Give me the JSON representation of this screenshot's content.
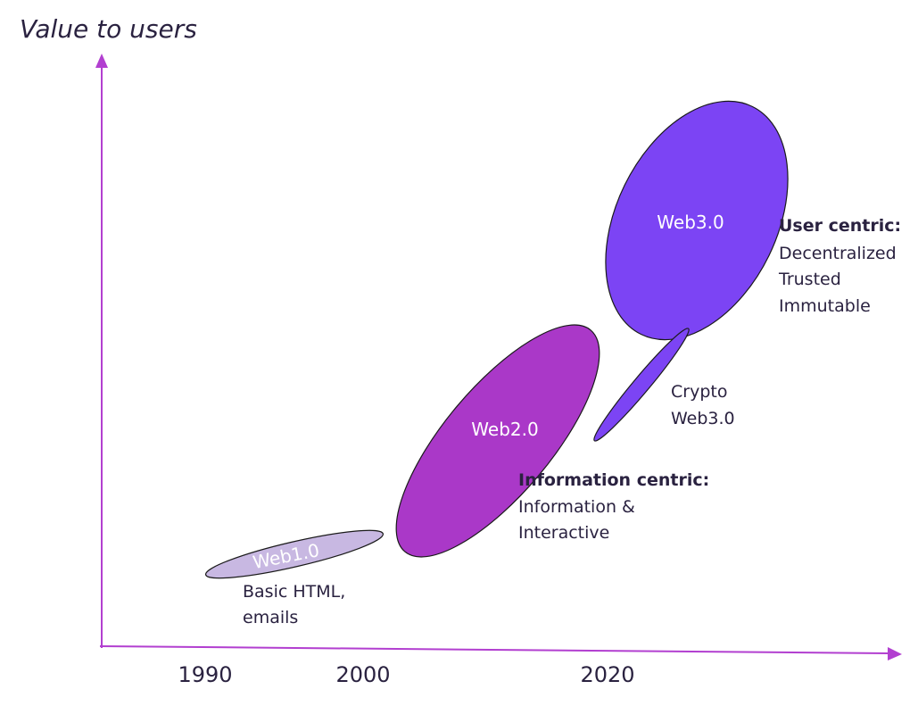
{
  "y_axis_title": "Value to users",
  "x_ticks": [
    "1990",
    "2000",
    "2020"
  ],
  "colors": {
    "axis": "#b23fd0",
    "web1": "#c8b8e2",
    "web2": "#aa38c8",
    "web3": "#7c44f4",
    "crypto": "#7c44f4",
    "text": "#2a2240"
  },
  "eras": {
    "web1": {
      "label": "Web1.0",
      "desc_lines": [
        "Basic HTML,",
        "emails"
      ]
    },
    "web2": {
      "label": "Web2.0",
      "heading": "Information centric:",
      "desc_lines": [
        "Information &",
        "Interactive"
      ]
    },
    "web3": {
      "label": "Web3.0",
      "heading": "User centric:",
      "desc_lines": [
        "Decentralized",
        "Trusted",
        "Immutable"
      ]
    },
    "crypto": {
      "desc_lines": [
        "Crypto",
        "Web3.0"
      ]
    }
  }
}
